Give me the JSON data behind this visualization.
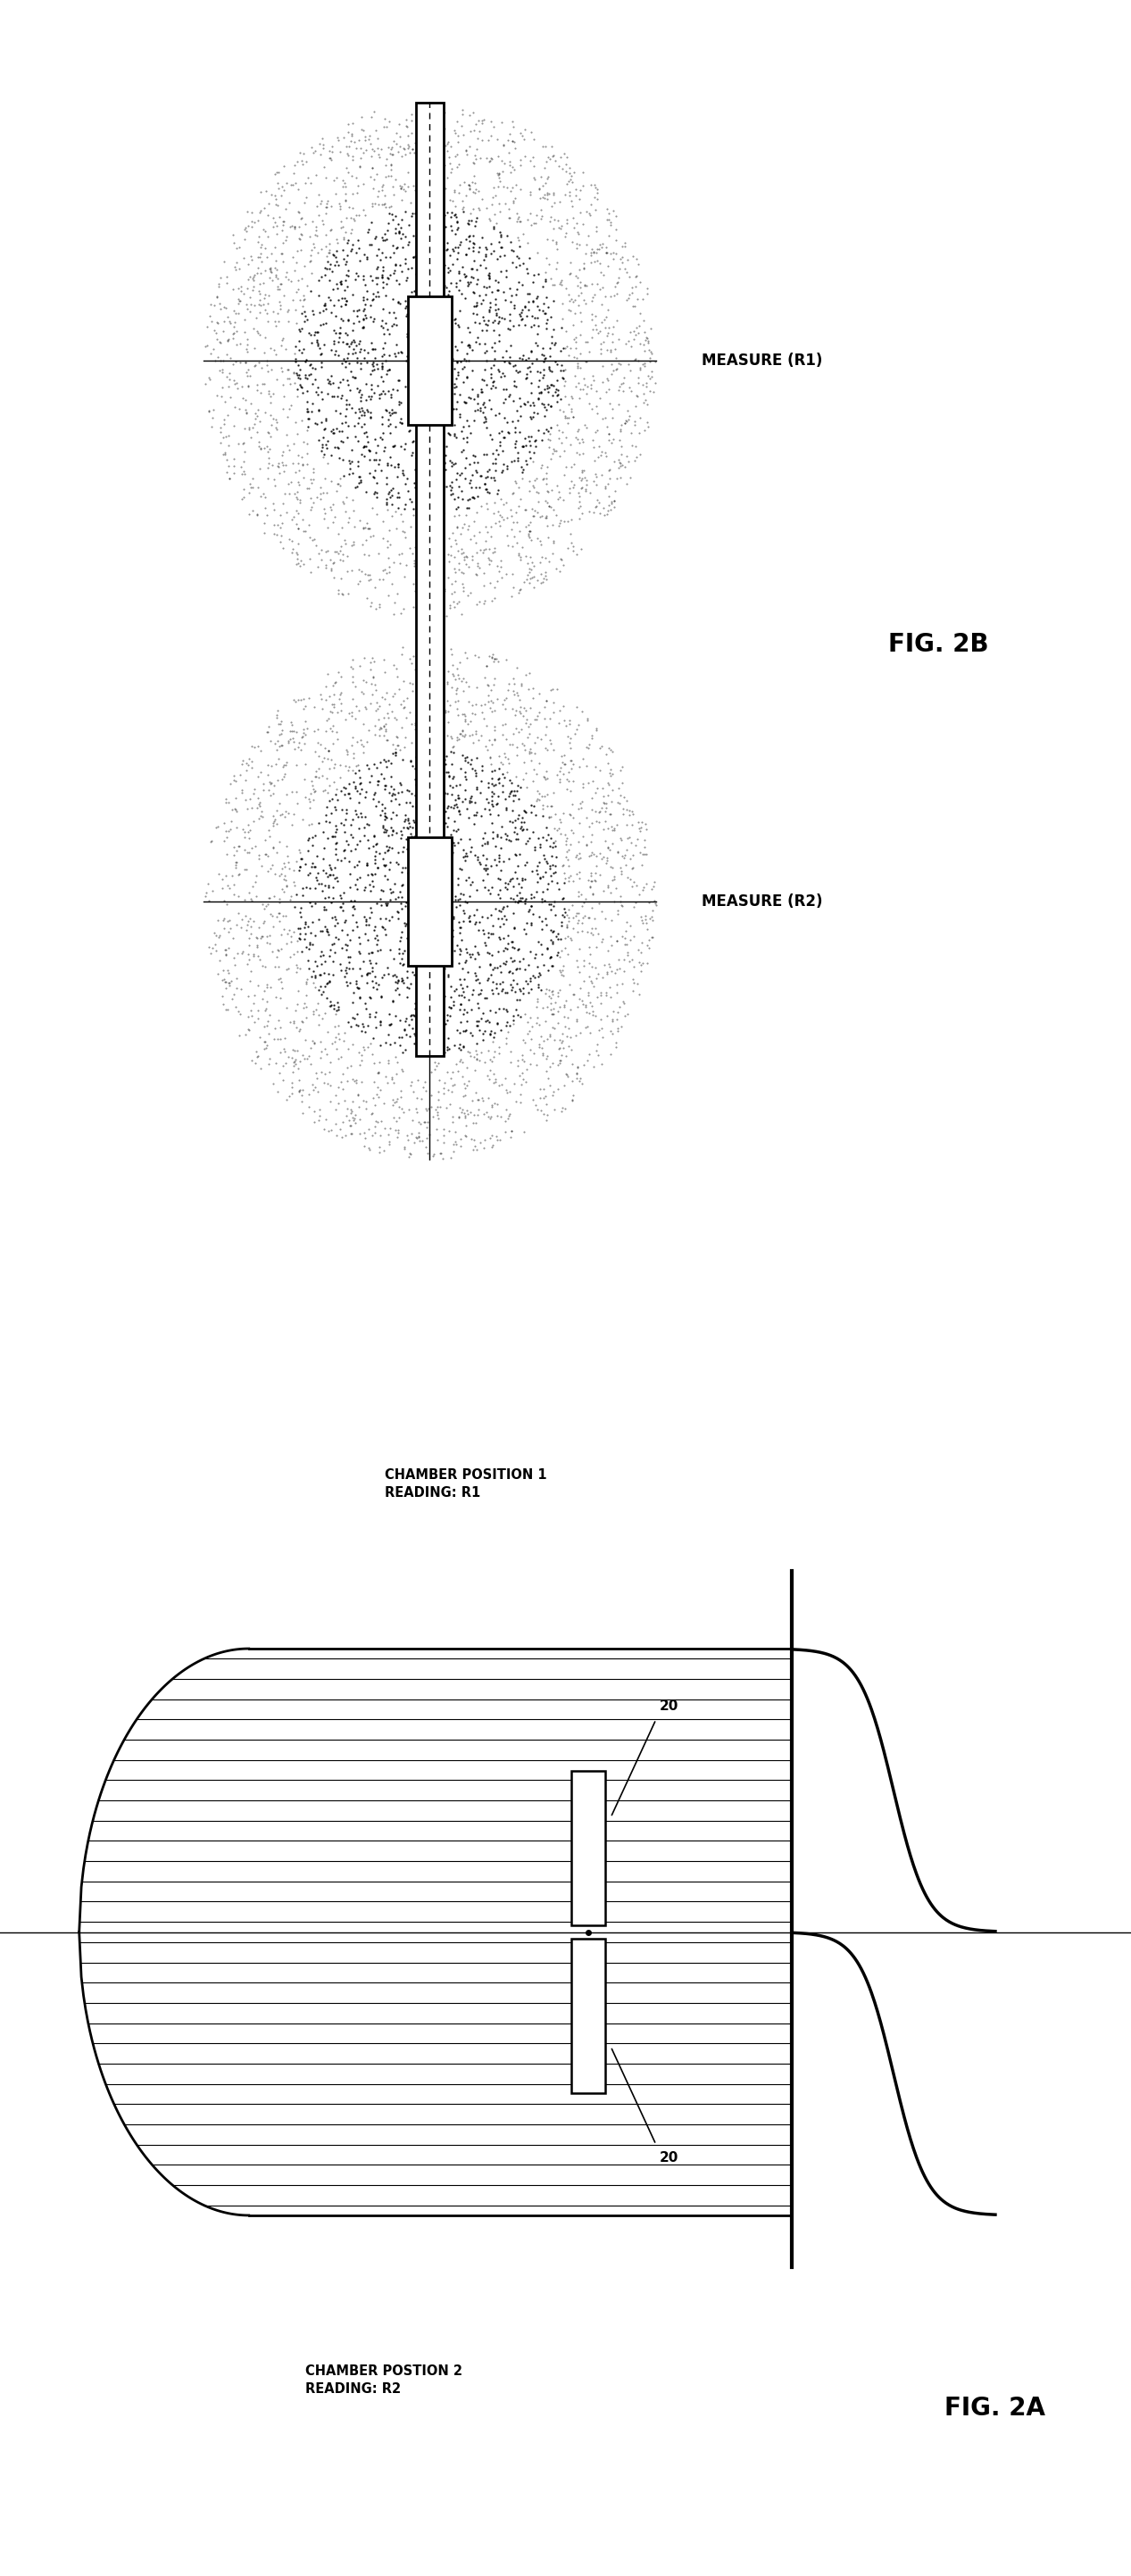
{
  "fig_width": 12.67,
  "fig_height": 28.86,
  "background_color": "#ffffff",
  "fig2a_label": "FIG. 2A",
  "fig2b_label": "FIG. 2B",
  "chamber_pos1_label": "CHAMBER POSITION 1\nREADING: R1",
  "chamber_pos2_label": "CHAMBER POSTION 2\nREADING: R2",
  "measure_r1_label": "MEASURE (R1)",
  "measure_r2_label": "MEASURE (R2)",
  "label_20": "20"
}
